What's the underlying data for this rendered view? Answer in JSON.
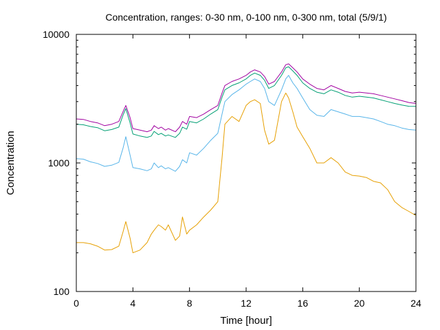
{
  "chart_data": {
    "type": "line",
    "title": "Concentration, ranges: 0-30 nm, 0-100 nm, 0-300 nm, total (5/9/1)",
    "xlabel": "Time [hour]",
    "ylabel": "Concentration",
    "xlim": [
      0,
      24
    ],
    "ylim": [
      100,
      10000
    ],
    "yscale": "log",
    "x_ticks": [
      "0",
      "4",
      "8",
      "12",
      "16",
      "20",
      "24"
    ],
    "y_ticks": [
      "100",
      "1000",
      "10000"
    ],
    "grid": false,
    "legend": "none",
    "x": [
      0,
      0.5,
      1,
      1.5,
      2,
      2.5,
      3,
      3.3,
      3.5,
      3.8,
      4,
      4.5,
      5,
      5.3,
      5.5,
      5.8,
      6,
      6.3,
      6.5,
      7,
      7.3,
      7.5,
      7.8,
      8,
      8.5,
      9,
      9.5,
      10,
      10.3,
      10.5,
      11,
      11.5,
      12,
      12.3,
      12.6,
      13,
      13.3,
      13.6,
      14,
      14.5,
      14.8,
      15,
      15.3,
      15.6,
      16,
      16.5,
      17,
      17.5,
      18,
      18.5,
      19,
      19.5,
      20,
      20.5,
      21,
      21.5,
      22,
      22.5,
      23,
      23.5,
      24
    ],
    "series": [
      {
        "color": "#a000a0",
        "values": [
          2200,
          2180,
          2100,
          2050,
          1950,
          2000,
          2100,
          2500,
          2800,
          2250,
          1850,
          1800,
          1750,
          1800,
          1950,
          1850,
          1900,
          1800,
          1850,
          1750,
          1900,
          2100,
          2000,
          2300,
          2250,
          2400,
          2600,
          2800,
          3500,
          4000,
          4300,
          4500,
          4800,
          5100,
          5300,
          5100,
          4700,
          4100,
          4300,
          5100,
          5800,
          5900,
          5500,
          5100,
          4500,
          4100,
          3800,
          3700,
          4000,
          3800,
          3600,
          3500,
          3550,
          3500,
          3450,
          3350,
          3250,
          3150,
          3050,
          2950,
          2900
        ]
      },
      {
        "color": "#009e73",
        "values": [
          2000,
          1980,
          1920,
          1880,
          1780,
          1820,
          1900,
          2350,
          2650,
          2050,
          1680,
          1620,
          1580,
          1620,
          1760,
          1660,
          1700,
          1620,
          1650,
          1580,
          1700,
          1900,
          1830,
          2100,
          2050,
          2200,
          2400,
          2600,
          3250,
          3700,
          4000,
          4200,
          4500,
          4800,
          5000,
          4800,
          4400,
          3800,
          4000,
          4800,
          5500,
          5600,
          5200,
          4800,
          4200,
          3800,
          3550,
          3450,
          3700,
          3550,
          3350,
          3250,
          3300,
          3250,
          3200,
          3100,
          3000,
          2900,
          2820,
          2760,
          2750
        ]
      },
      {
        "color": "#56b4e9",
        "values": [
          1080,
          1070,
          1020,
          990,
          940,
          960,
          1010,
          1300,
          1600,
          1150,
          920,
          900,
          870,
          900,
          1000,
          920,
          950,
          900,
          920,
          860,
          940,
          1060,
          1000,
          1200,
          1150,
          1300,
          1500,
          1700,
          2400,
          3000,
          3400,
          3700,
          4100,
          4300,
          4500,
          4300,
          3800,
          3000,
          2800,
          3700,
          4500,
          4800,
          4200,
          3800,
          3200,
          2600,
          2350,
          2300,
          2600,
          2500,
          2400,
          2300,
          2300,
          2250,
          2200,
          2100,
          2000,
          1950,
          1870,
          1820,
          1800
        ]
      },
      {
        "color": "#e69f00",
        "values": [
          240,
          240,
          235,
          225,
          210,
          212,
          225,
          290,
          350,
          260,
          200,
          210,
          240,
          280,
          300,
          330,
          320,
          300,
          330,
          250,
          270,
          380,
          280,
          300,
          330,
          380,
          430,
          500,
          1100,
          2000,
          2300,
          2100,
          2800,
          3000,
          3100,
          2900,
          1800,
          1400,
          1500,
          3000,
          3500,
          3200,
          2500,
          1900,
          1600,
          1300,
          1000,
          1000,
          1100,
          1000,
          850,
          800,
          790,
          770,
          720,
          700,
          620,
          500,
          450,
          420,
          390
        ]
      }
    ]
  }
}
